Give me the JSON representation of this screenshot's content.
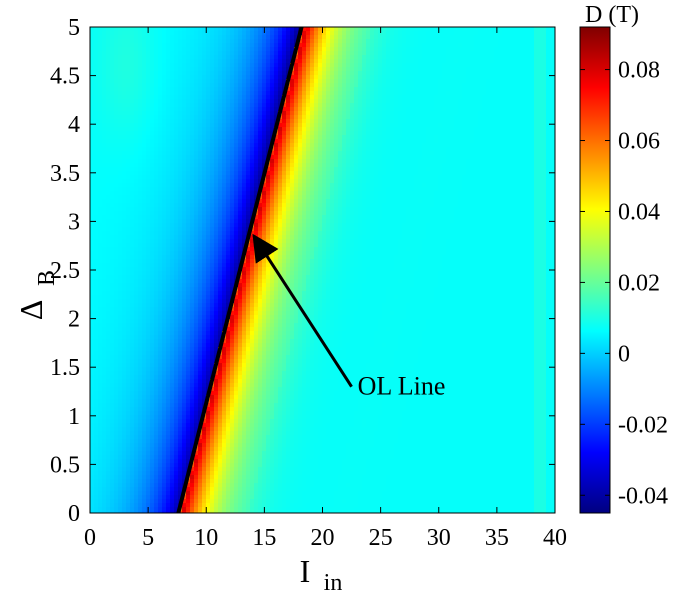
{
  "chart_data": {
    "type": "heatmap",
    "xlabel": "I",
    "xlabel_sub": "in",
    "ylabel": "Δ",
    "ylabel_sub": "B",
    "xlim": [
      0,
      40
    ],
    "ylim": [
      0,
      5
    ],
    "xticks": [
      0,
      5,
      10,
      15,
      20,
      25,
      30,
      35,
      40
    ],
    "yticks": [
      0,
      0.5,
      1,
      1.5,
      2,
      2.5,
      3,
      3.5,
      4,
      4.5,
      5
    ],
    "colorbar": {
      "title": "D (T)",
      "range": [
        -0.045,
        0.092
      ],
      "ticks": [
        -0.04,
        -0.02,
        0,
        0.02,
        0.04,
        0.06,
        0.08
      ],
      "colormap": "jet"
    },
    "ol_line": {
      "label": "OL Line",
      "points": [
        [
          7.6,
          0
        ],
        [
          18.2,
          5
        ]
      ],
      "color": "#000000"
    },
    "annotation": {
      "text": "OL Line",
      "arrow_tail": [
        22.5,
        1.3
      ],
      "arrow_head": [
        14.1,
        2.85
      ]
    },
    "field_model": {
      "description_values": {
        "background": 0.007,
        "min_near_line": -0.045,
        "max_near_line": 0.092
      }
    }
  }
}
